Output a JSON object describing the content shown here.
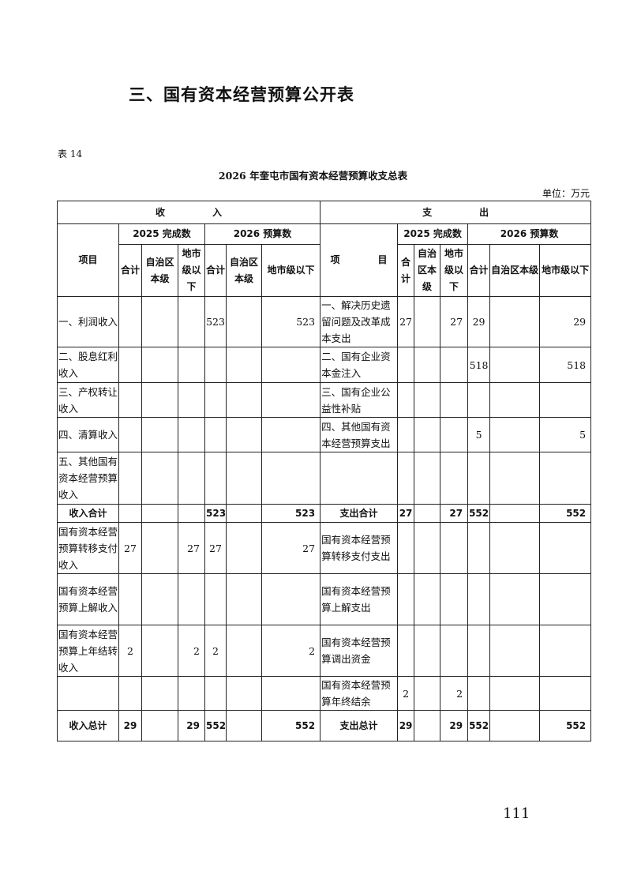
{
  "heading": "三、国有资本经营预算公开表",
  "table_no": "表 14",
  "title": "2026 年奎屯市国有资本经营预算收支总表",
  "unit": "单位：万元",
  "header": {
    "income": "收　　　　　入",
    "expense": "支　　　　　出",
    "item": "项目",
    "item2": "项　　　　目",
    "y2025": "2025 完成数",
    "y2026": "2026 预算数",
    "total": "合计",
    "total2": "合计",
    "region": "自治区本级",
    "city": "地市级以下"
  },
  "rows": [
    {
      "in_item": "一、利润收入",
      "in": [
        "",
        "",
        "",
        "523",
        "",
        "523"
      ],
      "out_item": "一、解决历史遗留问题及改革成本支出",
      "out": [
        "27",
        "",
        "27",
        "29",
        "",
        "29"
      ]
    },
    {
      "in_item": "二、股息红利收入",
      "in": [
        "",
        "",
        "",
        "",
        "",
        ""
      ],
      "out_item": "二、国有企业资本金注入",
      "out": [
        "",
        "",
        "",
        "518",
        "",
        "518"
      ]
    },
    {
      "in_item": "三、产权转让收入",
      "in": [
        "",
        "",
        "",
        "",
        "",
        ""
      ],
      "out_item": "三、国有企业公益性补贴",
      "out": [
        "",
        "",
        "",
        "",
        "",
        ""
      ]
    },
    {
      "in_item": "四、清算收入",
      "in": [
        "",
        "",
        "",
        "",
        "",
        ""
      ],
      "out_item": "四、其他国有资本经营预算支出",
      "out": [
        "",
        "",
        "",
        "5",
        "",
        "5"
      ]
    },
    {
      "in_item": "五、其他国有资本经营预算收入",
      "in": [
        "",
        "",
        "",
        "",
        "",
        ""
      ],
      "out_item": "",
      "out": [
        "",
        "",
        "",
        "",
        "",
        ""
      ]
    },
    {
      "in_item": "收入合计",
      "in": [
        "",
        "",
        "",
        "523",
        "",
        "523"
      ],
      "out_item": "支出合计",
      "out": [
        "27",
        "",
        "27",
        "552",
        "",
        "552"
      ],
      "bold": true
    },
    {
      "in_item": "国有资本经营预算转移支付收入",
      "in": [
        "27",
        "",
        "27",
        "27",
        "",
        "27"
      ],
      "out_item": "国有资本经营预算转移支付支出",
      "out": [
        "",
        "",
        "",
        "",
        "",
        ""
      ]
    },
    {
      "in_item": "国有资本经营预算上解收入",
      "in": [
        "",
        "",
        "",
        "",
        "",
        ""
      ],
      "out_item": "国有资本经营预算上解支出",
      "out": [
        "",
        "",
        "",
        "",
        "",
        ""
      ]
    },
    {
      "in_item": "国有资本经营预算上年结转收入",
      "in": [
        "2",
        "",
        "2",
        "2",
        "",
        "2"
      ],
      "out_item": "国有资本经营预算调出资金",
      "out": [
        "",
        "",
        "",
        "",
        "",
        ""
      ]
    },
    {
      "in_item": "",
      "in": [
        "",
        "",
        "",
        "",
        "",
        ""
      ],
      "out_item": "国有资本经营预算年终结余",
      "out": [
        "2",
        "",
        "2",
        "",
        "",
        ""
      ]
    },
    {
      "in_item": "收入总计",
      "in": [
        "29",
        "",
        "29",
        "552",
        "",
        "552"
      ],
      "out_item": "支出总计",
      "out": [
        "29",
        "",
        "29",
        "552",
        "",
        "552"
      ],
      "bold": true
    }
  ],
  "page_number": "111"
}
